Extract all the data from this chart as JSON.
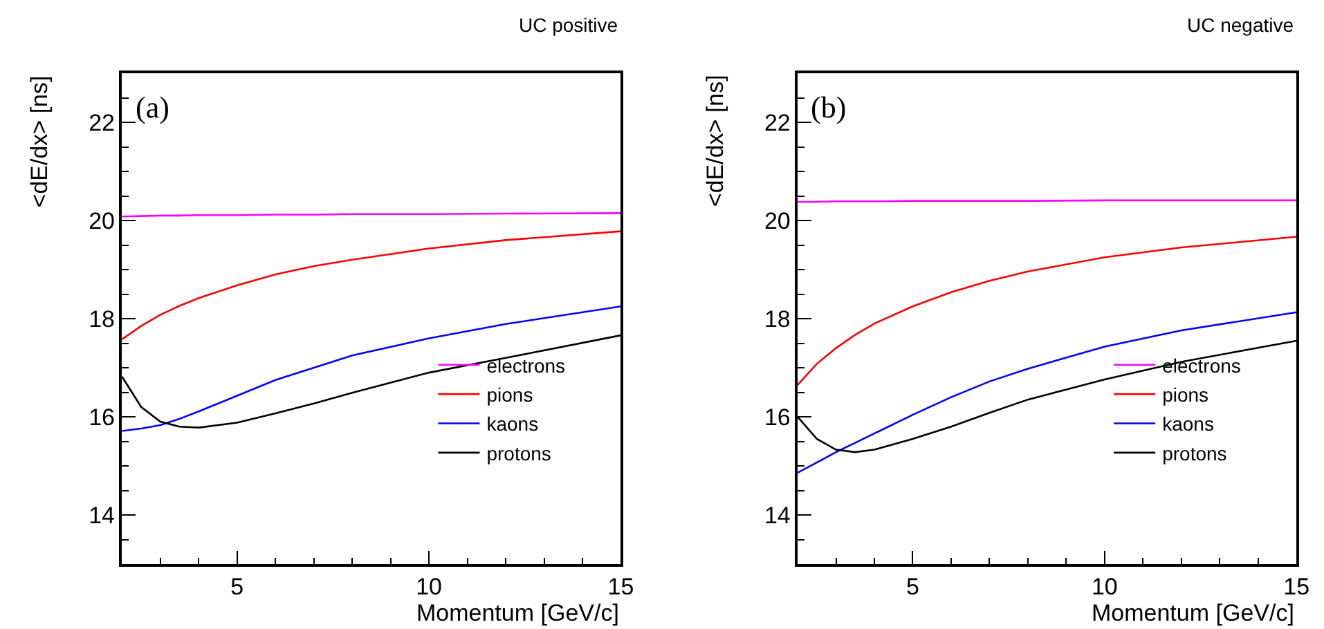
{
  "chart_data": [
    {
      "type": "line",
      "title": "UC positive",
      "xlabel": "Momentum [GeV/c]",
      "ylabel": "<dE/dx> [ns]",
      "annotations": [
        "(a)"
      ],
      "x": [
        2,
        2.5,
        3,
        3.5,
        4,
        5,
        6,
        7,
        8,
        10,
        12,
        15
      ],
      "series": [
        {
          "name": "electrons",
          "color": "#ff00ff",
          "values": [
            20.08,
            20.09,
            20.1,
            20.1,
            20.11,
            20.11,
            20.12,
            20.12,
            20.13,
            20.13,
            20.14,
            20.15
          ]
        },
        {
          "name": "pions",
          "color": "#ff0000",
          "values": [
            17.58,
            17.85,
            18.08,
            18.26,
            18.42,
            18.68,
            18.9,
            19.07,
            19.2,
            19.43,
            19.6,
            19.78
          ]
        },
        {
          "name": "kaons",
          "color": "#0000ff",
          "values": [
            15.71,
            15.76,
            15.83,
            15.96,
            16.11,
            16.43,
            16.75,
            17.0,
            17.25,
            17.6,
            17.89,
            18.25
          ]
        },
        {
          "name": "protons",
          "color": "#000000",
          "values": [
            16.82,
            16.2,
            15.9,
            15.8,
            15.78,
            15.88,
            16.07,
            16.27,
            16.49,
            16.9,
            17.2,
            17.66
          ]
        }
      ],
      "xlim": [
        2,
        15
      ],
      "ylim": [
        13,
        23
      ],
      "xticks": [
        {
          "value": 3,
          "label": null
        },
        {
          "value": 4,
          "label": null
        },
        5,
        {
          "value": 6,
          "label": null
        },
        {
          "value": 7,
          "label": null
        },
        {
          "value": 8,
          "label": null
        },
        {
          "value": 9,
          "label": null
        },
        10,
        {
          "value": 11,
          "label": null
        },
        {
          "value": 12,
          "label": null
        },
        {
          "value": 13,
          "label": null
        },
        {
          "value": 14,
          "label": null
        },
        15
      ],
      "yticks": [
        {
          "value": 13.5,
          "label": null
        },
        14,
        {
          "value": 14.5,
          "label": null
        },
        {
          "value": 15,
          "label": null
        },
        {
          "value": 15.5,
          "label": null
        },
        16,
        {
          "value": 16.5,
          "label": null
        },
        {
          "value": 17,
          "label": null
        },
        {
          "value": 17.5,
          "label": null
        },
        18,
        {
          "value": 18.5,
          "label": null
        },
        {
          "value": 19,
          "label": null
        },
        {
          "value": 19.5,
          "label": null
        },
        20,
        {
          "value": 20.5,
          "label": null
        },
        {
          "value": 21,
          "label": null
        },
        {
          "value": 21.5,
          "label": null
        },
        22,
        {
          "value": 22.5,
          "label": null
        }
      ],
      "legend": "bottom right",
      "marker": "none",
      "line_style": "solid"
    },
    {
      "type": "line",
      "title": "UC negative",
      "xlabel": "Momentum [GeV/c]",
      "ylabel": "<dE/dx> [ns]",
      "annotations": [
        "(b)"
      ],
      "x": [
        2,
        2.5,
        3,
        3.5,
        4,
        5,
        6,
        7,
        8,
        10,
        12,
        15
      ],
      "series": [
        {
          "name": "electrons",
          "color": "#ff00ff",
          "values": [
            20.38,
            20.38,
            20.39,
            20.39,
            20.39,
            20.4,
            20.4,
            20.4,
            20.4,
            20.41,
            20.41,
            20.41
          ]
        },
        {
          "name": "pions",
          "color": "#ff0000",
          "values": [
            16.65,
            17.08,
            17.4,
            17.67,
            17.9,
            18.25,
            18.54,
            18.77,
            18.96,
            19.25,
            19.45,
            19.67
          ]
        },
        {
          "name": "kaons",
          "color": "#0000ff",
          "values": [
            14.86,
            15.07,
            15.28,
            15.47,
            15.66,
            16.04,
            16.4,
            16.72,
            16.98,
            17.43,
            17.76,
            18.13
          ]
        },
        {
          "name": "protons",
          "color": "#000000",
          "values": [
            16.0,
            15.55,
            15.33,
            15.28,
            15.33,
            15.55,
            15.8,
            16.08,
            16.35,
            16.76,
            17.12,
            17.55
          ]
        }
      ],
      "xlim": [
        2,
        15
      ],
      "ylim": [
        13,
        23
      ],
      "xticks": [
        {
          "value": 3,
          "label": null
        },
        {
          "value": 4,
          "label": null
        },
        5,
        {
          "value": 6,
          "label": null
        },
        {
          "value": 7,
          "label": null
        },
        {
          "value": 8,
          "label": null
        },
        {
          "value": 9,
          "label": null
        },
        10,
        {
          "value": 11,
          "label": null
        },
        {
          "value": 12,
          "label": null
        },
        {
          "value": 13,
          "label": null
        },
        {
          "value": 14,
          "label": null
        },
        15
      ],
      "yticks": [
        {
          "value": 13.5,
          "label": null
        },
        14,
        {
          "value": 14.5,
          "label": null
        },
        {
          "value": 15,
          "label": null
        },
        {
          "value": 15.5,
          "label": null
        },
        16,
        {
          "value": 16.5,
          "label": null
        },
        {
          "value": 17,
          "label": null
        },
        {
          "value": 17.5,
          "label": null
        },
        18,
        {
          "value": 18.5,
          "label": null
        },
        {
          "value": 19,
          "label": null
        },
        {
          "value": 19.5,
          "label": null
        },
        20,
        {
          "value": 20.5,
          "label": null
        },
        {
          "value": 21,
          "label": null
        },
        {
          "value": 21.5,
          "label": null
        },
        22,
        {
          "value": 22.5,
          "label": null
        }
      ],
      "legend": "bottom right",
      "marker": "none",
      "line_style": "solid"
    }
  ]
}
